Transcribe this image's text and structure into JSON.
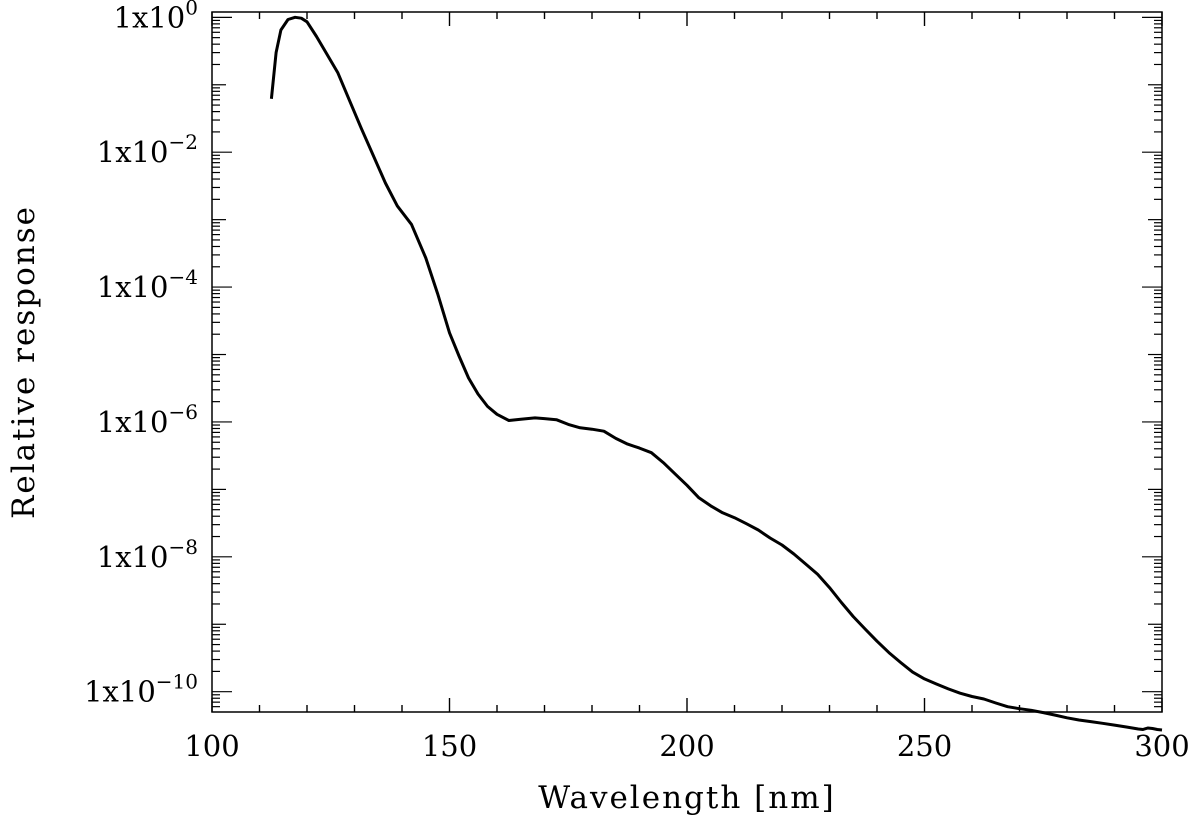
{
  "chart_data": {
    "type": "line",
    "title": "",
    "xlabel": "Wavelength [nm]",
    "ylabel": "Relative response",
    "xlim": [
      100,
      300
    ],
    "ylim": [
      5e-11,
      1.2
    ],
    "yscale": "log",
    "grid": false,
    "line_color": "#000000",
    "x_ticks": [
      {
        "value": 100,
        "label": "100"
      },
      {
        "value": 150,
        "label": "150"
      },
      {
        "value": 200,
        "label": "200"
      },
      {
        "value": 250,
        "label": "250"
      },
      {
        "value": 300,
        "label": "300"
      }
    ],
    "y_ticks": [
      {
        "value": 1,
        "base": "1x10",
        "exp": "0"
      },
      {
        "value": 0.01,
        "base": "1x10",
        "exp": "−2"
      },
      {
        "value": 0.0001,
        "base": "1x10",
        "exp": "−4"
      },
      {
        "value": 1e-06,
        "base": "1x10",
        "exp": "−6"
      },
      {
        "value": 1e-08,
        "base": "1x10",
        "exp": "−8"
      },
      {
        "value": 1e-10,
        "base": "1x10",
        "exp": "−10"
      }
    ],
    "series": [
      {
        "x": [
          112.5,
          113.5,
          114.5,
          116.0,
          117.5,
          118.8,
          120.0,
          122.0,
          124.0,
          126.5,
          129.0,
          131.5,
          134.0,
          136.5,
          139.0,
          142.0,
          145.0,
          147.5,
          150.0,
          152.0,
          154.0,
          156.0,
          158.0,
          160.0,
          162.5,
          165.0,
          168.0,
          170.0,
          172.5,
          175.0,
          177.5,
          180.0,
          182.5,
          185.0,
          187.5,
          190.0,
          192.5,
          195.0,
          197.5,
          200.0,
          202.5,
          205.0,
          207.5,
          210.0,
          212.5,
          215.0,
          217.5,
          220.0,
          222.5,
          225.0,
          227.5,
          230.0,
          232.5,
          235.0,
          237.5,
          240.0,
          242.5,
          245.0,
          247.5,
          250.0,
          252.5,
          255.0,
          257.5,
          260.0,
          262.5,
          265.0,
          267.5,
          270.0,
          272.5,
          275.0,
          277.5,
          280.0,
          282.5,
          285.0,
          287.5,
          290.0,
          292.5,
          295.0,
          296.0,
          297.0,
          298.0,
          299.0,
          300.0
        ],
        "y": [
          0.062,
          0.3,
          0.65,
          0.93,
          1.0,
          0.97,
          0.86,
          0.52,
          0.3,
          0.15,
          0.057,
          0.022,
          0.0088,
          0.0035,
          0.0016,
          0.00085,
          0.00027,
          8e-05,
          2.1e-05,
          9.5e-06,
          4.5e-06,
          2.6e-06,
          1.7e-06,
          1.3e-06,
          1.05e-06,
          1.1e-06,
          1.15e-06,
          1.12e-06,
          1.08e-06,
          9.2e-07,
          8.2e-07,
          7.8e-07,
          7.3e-07,
          5.7e-07,
          4.7e-07,
          4.1e-07,
          3.5e-07,
          2.5e-07,
          1.7e-07,
          1.15e-07,
          7.5e-08,
          5.7e-08,
          4.5e-08,
          3.8e-08,
          3.1e-08,
          2.5e-08,
          1.9e-08,
          1.5e-08,
          1.1e-08,
          7.8e-09,
          5.5e-09,
          3.5e-09,
          2.1e-09,
          1.3e-09,
          8.5e-10,
          5.6e-10,
          3.8e-10,
          2.7e-10,
          1.95e-10,
          1.55e-10,
          1.3e-10,
          1.1e-10,
          9.5e-11,
          8.5e-11,
          7.8e-11,
          6.8e-11,
          6e-11,
          5.6e-11,
          5.3e-11,
          4.9e-11,
          4.5e-11,
          4.1e-11,
          3.8e-11,
          3.6e-11,
          3.4e-11,
          3.2e-11,
          3e-11,
          2.8e-11,
          2.75e-11,
          2.9e-11,
          2.85e-11,
          2.75e-11,
          2.7e-11
        ]
      }
    ]
  }
}
